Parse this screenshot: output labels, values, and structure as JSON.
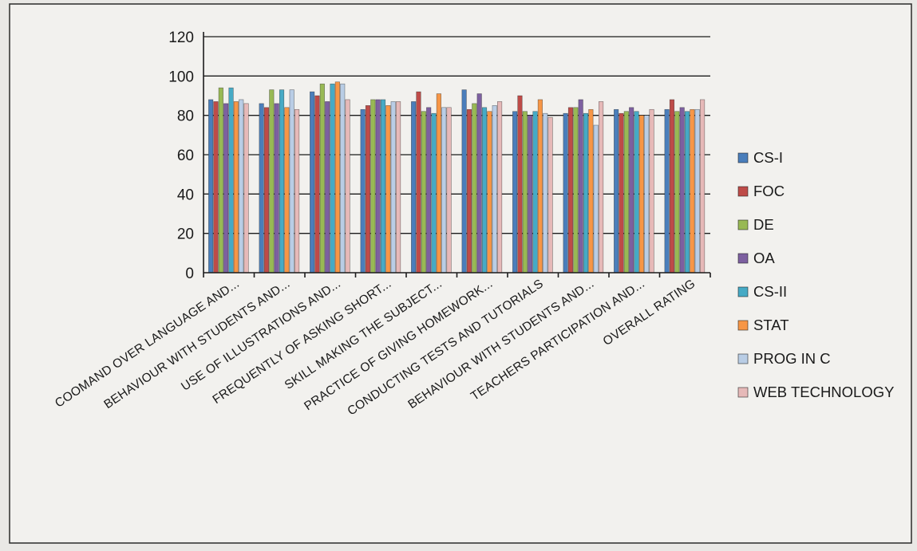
{
  "chart_data": {
    "type": "bar",
    "title": "",
    "xlabel": "",
    "ylabel": "",
    "ylim": [
      0,
      120
    ],
    "yticks": [
      0,
      20,
      40,
      60,
      80,
      100,
      120
    ],
    "grid": true,
    "legend_position": "right",
    "categories": [
      "COOMAND OVER LANGUAGE AND...",
      "BEHAVIOUR WITH STUDENTS AND...",
      "USE OF ILLUSTRATIONS AND...",
      "FREQUENTLY OF ASKING SHORT...",
      "SKILL MAKING THE SUBJECT...",
      "PRACTICE OF GIVING HOMEWORK...",
      "CONDUCTING TESTS AND TUTORIALS",
      "BEHAVIOUR WITH STUDENTS AND...",
      "TEACHERS PARTICIPATION AND...",
      "OVERALL RATING"
    ],
    "series": [
      {
        "name": "CS-I",
        "color": "#4a7ebb",
        "values": [
          88,
          86,
          92,
          83,
          87,
          93,
          82,
          81,
          83,
          83
        ]
      },
      {
        "name": "FOC",
        "color": "#be4b48",
        "values": [
          87,
          84,
          90,
          85,
          92,
          83,
          90,
          84,
          81,
          88
        ]
      },
      {
        "name": "DE",
        "color": "#98b954",
        "values": [
          94,
          93,
          96,
          88,
          82,
          86,
          82,
          84,
          82,
          82
        ]
      },
      {
        "name": "OA",
        "color": "#7d60a0",
        "values": [
          86,
          86,
          87,
          88,
          84,
          91,
          80,
          88,
          84,
          84
        ]
      },
      {
        "name": "CS-II",
        "color": "#46aac5",
        "values": [
          94,
          93,
          96,
          88,
          81,
          84,
          82,
          81,
          82,
          82
        ]
      },
      {
        "name": "STAT",
        "color": "#f79646",
        "values": [
          87,
          84,
          97,
          85,
          91,
          82,
          88,
          83,
          80,
          83
        ]
      },
      {
        "name": "PROG IN C",
        "color": "#b9cde5",
        "values": [
          88,
          93,
          96,
          87,
          84,
          85,
          81,
          75,
          80,
          83
        ]
      },
      {
        "name": "WEB TECHNOLOGY",
        "color": "#e6b9b8",
        "values": [
          86,
          83,
          88,
          87,
          84,
          87,
          79,
          87,
          83,
          88
        ]
      }
    ]
  }
}
